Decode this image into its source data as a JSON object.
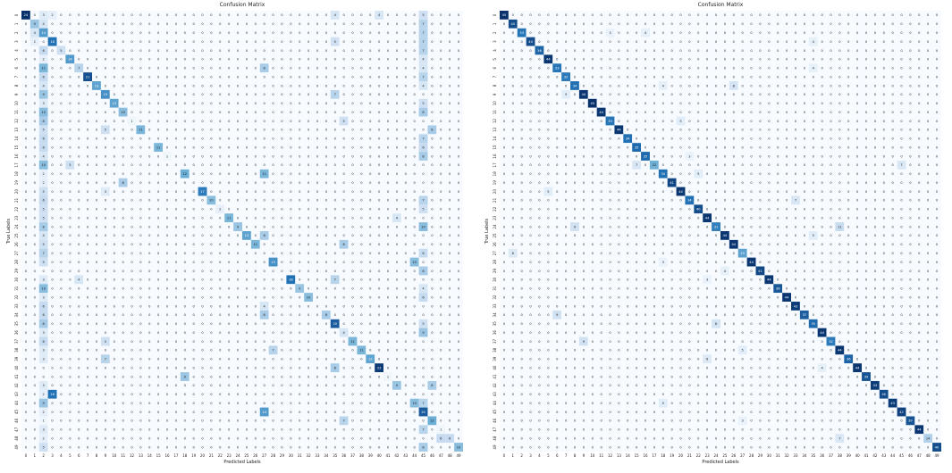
{
  "chart_data": [
    {
      "type": "heatmap",
      "title": "Confusion Matrix",
      "xlabel": "Predicted Labels",
      "ylabel": "True Labels",
      "labels": [
        0,
        1,
        2,
        3,
        4,
        5,
        6,
        7,
        8,
        9,
        10,
        11,
        12,
        13,
        14,
        15,
        16,
        17,
        18,
        19,
        20,
        21,
        22,
        23,
        24,
        25,
        26,
        27,
        28,
        29,
        30,
        31,
        32,
        33,
        34,
        35,
        36,
        37,
        38,
        39,
        40,
        41,
        42,
        43,
        44,
        45,
        46,
        47,
        48,
        49
      ],
      "diagonal": [
        24,
        9,
        14,
        18,
        5,
        14,
        7,
        21,
        13,
        15,
        13,
        10,
        1,
        11,
        0,
        11,
        1,
        0,
        12,
        0,
        17,
        10,
        2,
        11,
        9,
        13,
        11,
        0,
        15,
        0,
        18,
        9,
        10,
        0,
        8,
        20,
        4,
        11,
        11,
        13,
        23,
        1,
        9,
        0,
        10,
        20,
        12,
        1,
        6,
        10
      ],
      "off_diagonal_samples": [
        [
          0,
          2,
          3
        ],
        [
          0,
          3,
          2
        ],
        [
          0,
          35,
          4
        ],
        [
          0,
          40,
          4
        ],
        [
          0,
          45,
          5
        ],
        [
          1,
          2,
          4
        ],
        [
          1,
          45,
          7
        ],
        [
          2,
          1,
          4
        ],
        [
          2,
          45,
          7
        ],
        [
          3,
          1,
          2
        ],
        [
          3,
          35,
          5
        ],
        [
          3,
          45,
          7
        ],
        [
          4,
          2,
          6
        ],
        [
          4,
          45,
          7
        ],
        [
          5,
          2,
          2
        ],
        [
          5,
          45,
          4
        ],
        [
          6,
          2,
          11
        ],
        [
          6,
          27,
          8
        ],
        [
          6,
          45,
          4
        ],
        [
          7,
          2,
          6
        ],
        [
          7,
          45,
          7
        ],
        [
          8,
          2,
          4
        ],
        [
          8,
          45,
          4
        ],
        [
          9,
          2,
          9
        ],
        [
          9,
          35,
          7
        ],
        [
          10,
          2,
          3
        ],
        [
          10,
          45,
          5
        ],
        [
          11,
          2,
          10
        ],
        [
          11,
          45,
          8
        ],
        [
          12,
          2,
          8
        ],
        [
          12,
          36,
          5
        ],
        [
          13,
          2,
          5
        ],
        [
          13,
          9,
          5
        ],
        [
          13,
          46,
          8
        ],
        [
          14,
          2,
          6
        ],
        [
          14,
          45,
          7
        ],
        [
          15,
          2,
          6
        ],
        [
          15,
          45,
          6
        ],
        [
          16,
          2,
          4
        ],
        [
          16,
          45,
          8
        ],
        [
          17,
          2,
          10
        ],
        [
          17,
          5,
          5
        ],
        [
          18,
          2,
          2
        ],
        [
          18,
          27,
          11
        ],
        [
          19,
          2,
          2
        ],
        [
          19,
          11,
          8
        ],
        [
          20,
          2,
          5
        ],
        [
          20,
          9,
          3
        ],
        [
          21,
          2,
          6
        ],
        [
          21,
          45,
          7
        ],
        [
          22,
          2,
          5
        ],
        [
          22,
          45,
          5
        ],
        [
          23,
          2,
          5
        ],
        [
          23,
          42,
          4
        ],
        [
          24,
          2,
          8
        ],
        [
          24,
          45,
          10
        ],
        [
          25,
          2,
          4
        ],
        [
          25,
          27,
          8
        ],
        [
          26,
          2,
          5
        ],
        [
          26,
          36,
          8
        ],
        [
          27,
          2,
          7
        ],
        [
          27,
          45,
          6
        ],
        [
          28,
          2,
          5
        ],
        [
          28,
          44,
          10
        ],
        [
          29,
          2,
          0
        ],
        [
          29,
          45,
          8
        ],
        [
          30,
          2,
          3
        ],
        [
          30,
          6,
          4
        ],
        [
          30,
          35,
          7
        ],
        [
          31,
          2,
          10
        ],
        [
          31,
          45,
          4
        ],
        [
          32,
          2,
          3
        ],
        [
          32,
          45,
          6
        ],
        [
          33,
          2,
          6
        ],
        [
          33,
          27,
          4
        ],
        [
          34,
          2,
          6
        ],
        [
          34,
          27,
          8
        ],
        [
          35,
          2,
          8
        ],
        [
          35,
          45,
          5
        ],
        [
          36,
          2,
          3
        ],
        [
          36,
          45,
          9
        ],
        [
          37,
          2,
          6
        ],
        [
          37,
          9,
          5
        ],
        [
          38,
          2,
          3
        ],
        [
          38,
          28,
          7
        ],
        [
          39,
          2,
          3
        ],
        [
          39,
          9,
          7
        ],
        [
          40,
          2,
          0
        ],
        [
          40,
          35,
          8
        ],
        [
          41,
          2,
          0
        ],
        [
          41,
          18,
          9
        ],
        [
          42,
          2,
          3
        ],
        [
          42,
          46,
          8
        ],
        [
          43,
          2,
          2
        ],
        [
          43,
          3,
          18
        ],
        [
          44,
          2,
          9
        ],
        [
          44,
          45,
          7
        ],
        [
          45,
          2,
          2
        ],
        [
          45,
          27,
          14
        ],
        [
          46,
          2,
          1
        ],
        [
          46,
          36,
          7
        ],
        [
          47,
          2,
          3
        ],
        [
          47,
          45,
          7
        ],
        [
          48,
          2,
          2
        ],
        [
          48,
          47,
          6
        ],
        [
          49,
          2,
          5
        ],
        [
          49,
          45,
          8
        ]
      ],
      "vmax": 24,
      "colormap": [
        "#ffffff",
        "#08306b"
      ]
    },
    {
      "type": "heatmap",
      "title": "Confusion Matrix",
      "xlabel": "Predicted Labels",
      "ylabel": "True Labels",
      "labels": [
        0,
        1,
        2,
        3,
        4,
        5,
        6,
        7,
        8,
        9,
        10,
        11,
        12,
        13,
        14,
        15,
        16,
        17,
        18,
        19,
        20,
        21,
        22,
        23,
        24,
        25,
        26,
        27,
        28,
        29,
        30,
        31,
        32,
        33,
        34,
        35,
        36,
        37,
        38,
        39,
        40,
        41,
        42,
        43,
        44,
        45,
        46,
        47,
        48,
        49
      ],
      "diagonal": [
        45,
        40,
        33,
        40,
        36,
        44,
        33,
        32,
        34,
        44,
        45,
        44,
        33,
        44,
        34,
        35,
        35,
        22,
        34,
        41,
        44,
        34,
        40,
        44,
        31,
        44,
        44,
        25,
        44,
        41,
        44,
        38,
        44,
        43,
        37,
        35,
        44,
        32,
        44,
        36,
        44,
        39,
        43,
        40,
        43,
        42,
        39,
        44,
        14,
        40
      ],
      "off_diagonal_samples": [
        [
          2,
          12,
          3
        ],
        [
          2,
          16,
          4
        ],
        [
          3,
          35,
          4
        ],
        [
          6,
          35,
          4
        ],
        [
          8,
          26,
          8
        ],
        [
          8,
          18,
          4
        ],
        [
          9,
          7,
          5
        ],
        [
          12,
          20,
          5
        ],
        [
          16,
          21,
          3
        ],
        [
          17,
          15,
          7
        ],
        [
          17,
          45,
          7
        ],
        [
          18,
          22,
          5
        ],
        [
          20,
          5,
          5
        ],
        [
          21,
          33,
          7
        ],
        [
          24,
          8,
          9
        ],
        [
          24,
          38,
          11
        ],
        [
          25,
          35,
          5
        ],
        [
          27,
          1,
          6
        ],
        [
          28,
          18,
          3
        ],
        [
          29,
          25,
          4
        ],
        [
          30,
          23,
          3
        ],
        [
          34,
          6,
          9
        ],
        [
          35,
          24,
          8
        ],
        [
          37,
          9,
          9
        ],
        [
          38,
          27,
          5
        ],
        [
          39,
          23,
          6
        ],
        [
          40,
          36,
          4
        ],
        [
          44,
          18,
          5
        ],
        [
          46,
          27,
          3
        ],
        [
          48,
          38,
          7
        ]
      ],
      "vmax": 45,
      "colormap": [
        "#ffffff",
        "#08306b"
      ]
    }
  ]
}
